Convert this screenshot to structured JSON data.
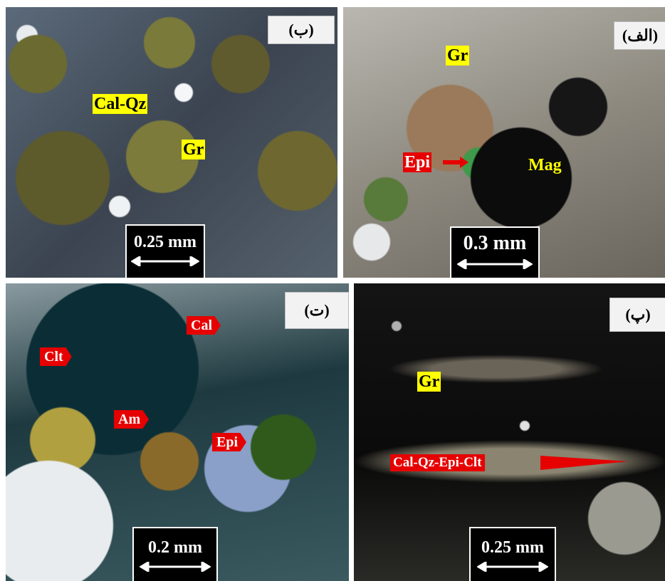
{
  "panels": [
    {
      "label": "(ب)",
      "annotations": [
        "Cal-Qz",
        "Gr"
      ],
      "scale": "0.25 mm"
    },
    {
      "label": "(الف)",
      "annotations": [
        "Gr",
        "Epi",
        "Mag"
      ],
      "scale": "0.3 mm"
    },
    {
      "label": "(ت)",
      "annotations": [
        "Cal",
        "Clt",
        "Am",
        "Epi"
      ],
      "scale": "0.2 mm"
    },
    {
      "label": "(پ)",
      "annotations": [
        "Gr",
        "Cal-Qz-Epi-Clt"
      ],
      "scale": "0.25 mm"
    }
  ]
}
